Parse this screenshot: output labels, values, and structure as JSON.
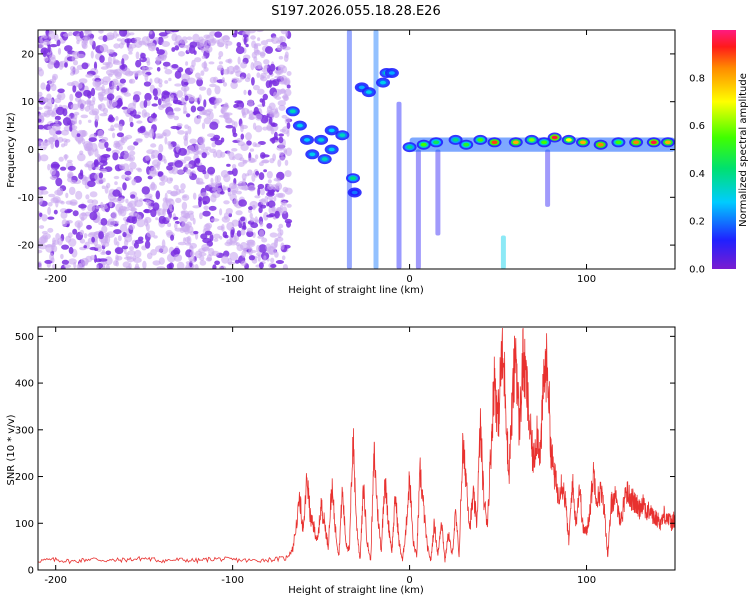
{
  "title": "S197.2026.055.18.28.E26",
  "colors": {
    "snr_line": "#e8312f",
    "frame": "#000000",
    "background": "#ffffff",
    "noise_primary": "#7a2ee0",
    "noise_light": "#c9a8f0"
  },
  "chart_data": [
    {
      "type": "heatmap",
      "name": "spectrogram",
      "xlabel": "Height of straight line (km)",
      "ylabel": "Frequency (Hz)",
      "xlim": [
        -210,
        150
      ],
      "ylim": [
        -25,
        25
      ],
      "xticks": [
        -200,
        -100,
        0,
        100
      ],
      "xtick_labels": [
        "-200",
        "-100",
        "0",
        "100"
      ],
      "yticks": [
        -20,
        -10,
        0,
        10,
        20
      ],
      "ytick_labels": [
        "-20",
        "-10",
        "0",
        "10",
        "20"
      ],
      "noise_region_x": [
        -210,
        -68
      ],
      "colorbar": {
        "label": "Normalized spectral amplitude",
        "range": [
          0,
          1
        ],
        "ticks": [
          0.0,
          0.2,
          0.4,
          0.6,
          0.8
        ],
        "tick_labels": [
          "0.0",
          "0.2",
          "0.4",
          "0.6",
          "0.8"
        ]
      },
      "features": [
        {
          "x": -66,
          "y": 8,
          "amp": 0.35
        },
        {
          "x": -62,
          "y": 5,
          "amp": 0.3
        },
        {
          "x": -58,
          "y": 2,
          "amp": 0.28
        },
        {
          "x": -55,
          "y": -1,
          "amp": 0.3
        },
        {
          "x": -50,
          "y": 2,
          "amp": 0.32
        },
        {
          "x": -48,
          "y": -2,
          "amp": 0.35
        },
        {
          "x": -44,
          "y": 0,
          "amp": 0.3
        },
        {
          "x": -44,
          "y": 4,
          "amp": 0.28
        },
        {
          "x": -38,
          "y": 3,
          "amp": 0.35
        },
        {
          "x": -32,
          "y": -6,
          "amp": 0.4
        },
        {
          "x": -31,
          "y": -9,
          "amp": 0.2
        },
        {
          "x": -27,
          "y": 13,
          "amp": 0.25
        },
        {
          "x": -23,
          "y": 12,
          "amp": 0.3
        },
        {
          "x": -15,
          "y": 14,
          "amp": 0.3
        },
        {
          "x": -13,
          "y": 16,
          "amp": 0.35
        },
        {
          "x": -10,
          "y": 16,
          "amp": 0.25
        },
        {
          "x": 0,
          "y": 0.5,
          "amp": 0.4
        },
        {
          "x": 8,
          "y": 1,
          "amp": 0.55
        },
        {
          "x": 15,
          "y": 1.5,
          "amp": 0.45
        },
        {
          "x": 26,
          "y": 2,
          "amp": 0.4
        },
        {
          "x": 32,
          "y": 1,
          "amp": 0.5
        },
        {
          "x": 40,
          "y": 2,
          "amp": 0.55
        },
        {
          "x": 48,
          "y": 1.5,
          "amp": 0.9
        },
        {
          "x": 60,
          "y": 1.5,
          "amp": 0.8
        },
        {
          "x": 69,
          "y": 2,
          "amp": 0.6
        },
        {
          "x": 76,
          "y": 1.5,
          "amp": 0.55
        },
        {
          "x": 82,
          "y": 2.5,
          "amp": 0.95
        },
        {
          "x": 90,
          "y": 2,
          "amp": 0.7
        },
        {
          "x": 98,
          "y": 1.5,
          "amp": 0.8
        },
        {
          "x": 108,
          "y": 1,
          "amp": 0.85
        },
        {
          "x": 118,
          "y": 1.5,
          "amp": 0.55
        },
        {
          "x": 128,
          "y": 1.5,
          "amp": 0.85
        },
        {
          "x": 138,
          "y": 1.5,
          "amp": 0.95
        },
        {
          "x": 146,
          "y": 1.5,
          "amp": 0.8
        }
      ],
      "vertical_streaks": [
        {
          "x": -34,
          "y_range": [
            -25,
            25
          ],
          "amp": 0.15
        },
        {
          "x": -19,
          "y_range": [
            -25,
            25
          ],
          "amp": 0.2
        },
        {
          "x": -6,
          "y_range": [
            -25,
            10
          ],
          "amp": 0.12
        },
        {
          "x": 5,
          "y_range": [
            -25,
            0
          ],
          "amp": 0.1
        },
        {
          "x": 16,
          "y_range": [
            -18,
            0
          ],
          "amp": 0.1
        },
        {
          "x": 53,
          "y_range": [
            -25,
            -18
          ],
          "amp": 0.3
        },
        {
          "x": 78,
          "y_range": [
            -12,
            0
          ],
          "amp": 0.1
        }
      ]
    },
    {
      "type": "line",
      "name": "snr",
      "xlabel": "Height of straight line (km)",
      "ylabel": "SNR (10 * v/v)",
      "xlim": [
        -210,
        150
      ],
      "ylim": [
        0,
        520
      ],
      "xticks": [
        -200,
        -100,
        0,
        100
      ],
      "xtick_labels": [
        "-200",
        "-100",
        "0",
        "100"
      ],
      "yticks": [
        0,
        100,
        200,
        300,
        400,
        500
      ],
      "ytick_labels": [
        "0",
        "100",
        "200",
        "300",
        "400",
        "500"
      ],
      "series": [
        {
          "name": "SNR",
          "x": [
            -210,
            -200,
            -190,
            -180,
            -170,
            -160,
            -150,
            -140,
            -130,
            -120,
            -110,
            -100,
            -90,
            -80,
            -70,
            -66,
            -62,
            -60,
            -58,
            -56,
            -54,
            -52,
            -50,
            -48,
            -46,
            -44,
            -42,
            -40,
            -38,
            -36,
            -34,
            -32,
            -30,
            -28,
            -26,
            -24,
            -22,
            -20,
            -18,
            -16,
            -14,
            -12,
            -10,
            -8,
            -6,
            -4,
            -2,
            0,
            2,
            4,
            6,
            8,
            10,
            12,
            14,
            16,
            18,
            20,
            22,
            24,
            26,
            28,
            30,
            32,
            34,
            36,
            38,
            40,
            42,
            44,
            46,
            48,
            50,
            52,
            54,
            56,
            58,
            60,
            62,
            64,
            66,
            68,
            70,
            72,
            74,
            76,
            78,
            80,
            82,
            84,
            86,
            88,
            90,
            92,
            94,
            96,
            98,
            100,
            102,
            104,
            106,
            108,
            110,
            112,
            114,
            116,
            118,
            120,
            122,
            124,
            126,
            128,
            130,
            132,
            134,
            136,
            138,
            140,
            142,
            144,
            146,
            148,
            150
          ],
          "values": [
            20,
            22,
            18,
            24,
            20,
            22,
            25,
            20,
            22,
            20,
            24,
            22,
            20,
            22,
            25,
            45,
            150,
            80,
            200,
            110,
            90,
            60,
            140,
            100,
            50,
            180,
            90,
            30,
            170,
            60,
            40,
            290,
            100,
            20,
            180,
            60,
            20,
            250,
            120,
            40,
            200,
            100,
            40,
            160,
            60,
            20,
            90,
            200,
            60,
            30,
            210,
            130,
            50,
            20,
            100,
            30,
            110,
            20,
            80,
            30,
            120,
            30,
            260,
            200,
            90,
            160,
            100,
            310,
            150,
            100,
            260,
            420,
            310,
            460,
            400,
            200,
            350,
            480,
            300,
            450,
            400,
            300,
            230,
            300,
            250,
            420,
            440,
            250,
            200,
            160,
            190,
            150,
            60,
            190,
            100,
            180,
            90,
            80,
            130,
            210,
            150,
            170,
            130,
            30,
            140,
            160,
            120,
            110,
            170,
            160,
            150,
            140,
            130,
            150,
            120,
            130,
            110,
            110,
            100,
            120,
            110,
            100,
            110
          ]
        }
      ]
    }
  ]
}
